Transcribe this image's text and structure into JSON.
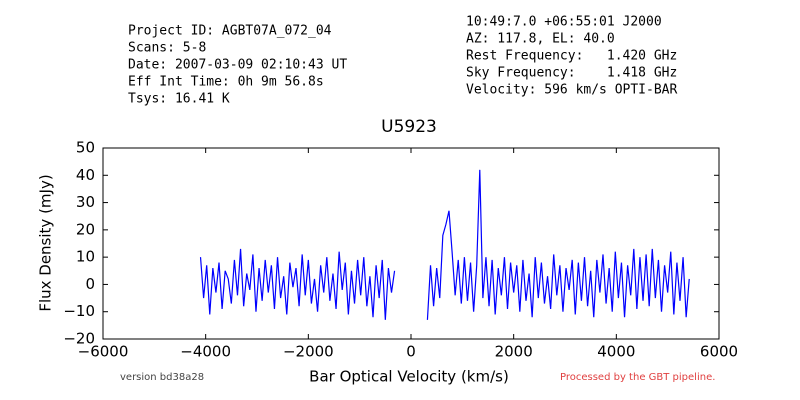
{
  "header": {
    "left": [
      "Project ID: AGBT07A_072_04",
      "Scans: 5-8",
      "Date: 2007-03-09 02:10:43 UT",
      "Eff Int Time: 0h 9m 56.8s",
      "Tsys: 16.41 K"
    ],
    "right": [
      "10:49:7.0 +06:55:01 J2000",
      "AZ: 117.8, EL: 40.0",
      "Rest Frequency:   1.420 GHz",
      "Sky Frequency:    1.418 GHz",
      "Velocity: 596 km/s OPTI-BAR"
    ]
  },
  "footer": {
    "left": "version bd38a28",
    "right": "Processed by the GBT pipeline."
  },
  "chart_data": {
    "type": "line",
    "title": "U5923",
    "xlabel": "Bar Optical Velocity (km/s)",
    "ylabel": "Flux Density (mJy)",
    "xlim": [
      -6000,
      6000
    ],
    "ylim": [
      -20,
      50
    ],
    "xticks": [
      {
        "value": -6000,
        "label": "−6000"
      },
      {
        "value": -4000,
        "label": "−4000"
      },
      {
        "value": -2000,
        "label": "−2000"
      },
      0,
      2000,
      4000,
      6000
    ],
    "yticks": [
      {
        "value": -20,
        "label": "−20"
      },
      {
        "value": -10,
        "label": "−10"
      },
      0,
      10,
      20,
      30,
      40,
      50
    ],
    "series": [
      {
        "color": "#0000ff",
        "x": [
          -4100,
          -4040,
          -3980,
          -3920,
          -3860,
          -3800,
          -3740,
          -3680,
          -3620,
          -3560,
          -3500,
          -3440,
          -3380,
          -3320,
          -3260,
          -3200,
          -3140,
          -3080,
          -3020,
          -2960,
          -2900,
          -2840,
          -2780,
          -2720,
          -2660,
          -2600,
          -2540,
          -2480,
          -2420,
          -2360,
          -2300,
          -2240,
          -2180,
          -2120,
          -2060,
          -2000,
          -1940,
          -1880,
          -1820,
          -1760,
          -1700,
          -1640,
          -1580,
          -1520,
          -1460,
          -1400,
          -1340,
          -1280,
          -1220,
          -1160,
          -1100,
          -1040,
          -980,
          -920,
          -860,
          -800,
          -740,
          -680,
          -620,
          -560,
          -500,
          -440,
          -380,
          -320,
          -20,
          320,
          380,
          440,
          500,
          560,
          620,
          680,
          740,
          800,
          860,
          920,
          980,
          1040,
          1100,
          1160,
          1220,
          1280,
          1340,
          1400,
          1460,
          1520,
          1580,
          1640,
          1700,
          1760,
          1820,
          1880,
          1940,
          2000,
          2060,
          2120,
          2180,
          2240,
          2300,
          2360,
          2420,
          2480,
          2540,
          2600,
          2660,
          2720,
          2780,
          2840,
          2900,
          2960,
          3020,
          3080,
          3140,
          3200,
          3260,
          3320,
          3380,
          3440,
          3500,
          3560,
          3620,
          3680,
          3740,
          3800,
          3860,
          3920,
          3980,
          4040,
          4100,
          4160,
          4220,
          4280,
          4340,
          4400,
          4460,
          4520,
          4580,
          4640,
          4700,
          4760,
          4820,
          4880,
          4940,
          5000,
          5060,
          5120,
          5180,
          5240,
          5300,
          5360,
          5420
        ],
        "values": [
          10,
          -5,
          7,
          -11,
          6,
          -3,
          8,
          -9,
          5,
          2,
          -7,
          9,
          -4,
          13,
          -8,
          4,
          -2,
          11,
          -10,
          6,
          -6,
          9,
          -3,
          7,
          -9,
          10,
          -5,
          3,
          -11,
          8,
          -1,
          6,
          -8,
          11,
          -4,
          9,
          -7,
          2,
          -10,
          7,
          -3,
          10,
          -6,
          4,
          -9,
          12,
          -2,
          8,
          -11,
          5,
          -7,
          9,
          -4,
          10,
          -8,
          3,
          -12,
          7,
          -5,
          9,
          -13,
          6,
          -3,
          5,
          null,
          -13,
          7,
          -8,
          6,
          -5,
          18,
          22,
          27,
          12,
          -4,
          9,
          -7,
          10,
          -6,
          8,
          -10,
          7,
          42,
          -5,
          10,
          -8,
          9,
          -11,
          6,
          -4,
          10,
          -9,
          8,
          -3,
          7,
          -10,
          9,
          -6,
          4,
          -12,
          10,
          -5,
          8,
          -7,
          3,
          -9,
          11,
          -4,
          7,
          -10,
          6,
          -2,
          9,
          -11,
          8,
          -6,
          10,
          -8,
          5,
          -12,
          9,
          -3,
          11,
          -7,
          6,
          -10,
          12,
          -5,
          8,
          -12,
          7,
          -4,
          13,
          -9,
          10,
          -6,
          11,
          -8,
          13,
          -5,
          9,
          -10,
          7,
          -3,
          12,
          -11,
          8,
          -6,
          10,
          -12,
          2
        ]
      }
    ]
  }
}
